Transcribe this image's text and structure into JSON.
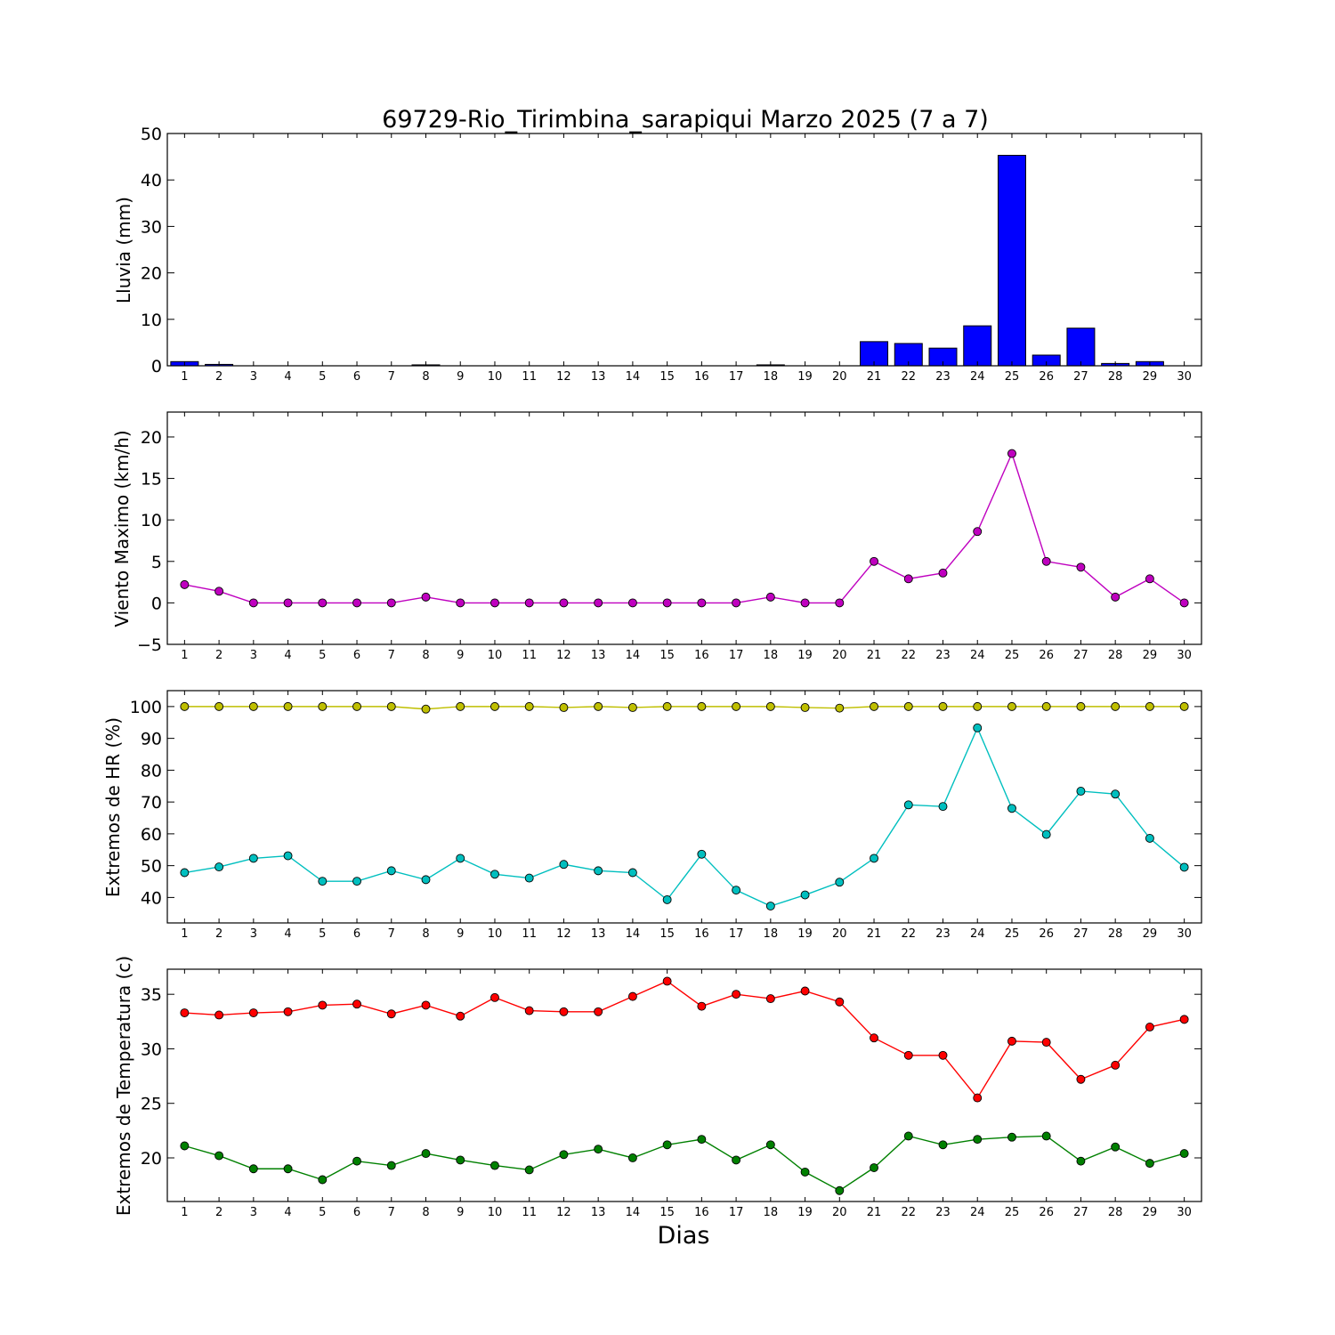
{
  "title": "69729-Rio_Tirimbina_sarapiqui Marzo 2025  (7 a 7)",
  "xlabel": "Dias",
  "colors": {
    "lluvia": "#0000ff",
    "viento": "#bf00bf",
    "hr_max": "#bfbf00",
    "hr_min": "#00bfbf",
    "temp_max": "#ff0000",
    "temp_min": "#008000"
  },
  "chart_data": [
    {
      "type": "bar",
      "title": "69729-Rio_Tirimbina_sarapiqui Marzo 2025  (7 a 7)",
      "xlabel": "",
      "ylabel": "Lluvia (mm)",
      "categories": [
        "1",
        "2",
        "3",
        "4",
        "5",
        "6",
        "7",
        "8",
        "9",
        "10",
        "11",
        "12",
        "13",
        "14",
        "15",
        "16",
        "17",
        "18",
        "19",
        "20",
        "21",
        "22",
        "23",
        "24",
        "25",
        "26",
        "27",
        "28",
        "29",
        "30"
      ],
      "ylim": [
        0,
        50
      ],
      "yticks": [
        "0",
        "10",
        "20",
        "30",
        "40",
        "50"
      ],
      "grid": false,
      "series": [
        {
          "values": [
            0.9,
            0.3,
            0,
            0,
            0,
            0,
            0,
            0.2,
            0,
            0,
            0,
            0,
            0,
            0,
            0,
            0,
            0,
            0.2,
            0,
            0,
            5.2,
            4.8,
            3.8,
            8.6,
            45.3,
            2.3,
            8.1,
            0.5,
            0.9,
            0
          ]
        }
      ]
    },
    {
      "type": "line",
      "xlabel": "",
      "ylabel": "Viento Maximo (km/h)",
      "categories": [
        "1",
        "2",
        "3",
        "4",
        "5",
        "6",
        "7",
        "8",
        "9",
        "10",
        "11",
        "12",
        "13",
        "14",
        "15",
        "16",
        "17",
        "18",
        "19",
        "20",
        "21",
        "22",
        "23",
        "24",
        "25",
        "26",
        "27",
        "28",
        "29",
        "30"
      ],
      "ylim": [
        -5,
        23
      ],
      "yticks": [
        "−5",
        "0",
        "5",
        "10",
        "15",
        "20"
      ],
      "grid": false,
      "series": [
        {
          "values": [
            2.2,
            1.4,
            0,
            0,
            0,
            0,
            0,
            0.7,
            0,
            0,
            0,
            0,
            0,
            0,
            0,
            0,
            0,
            0.7,
            0,
            0,
            5.0,
            2.9,
            3.6,
            8.6,
            18.0,
            5.0,
            4.3,
            0.7,
            2.9,
            0
          ]
        }
      ]
    },
    {
      "type": "line",
      "xlabel": "",
      "ylabel": "Extremos de HR (%)",
      "categories": [
        "1",
        "2",
        "3",
        "4",
        "5",
        "6",
        "7",
        "8",
        "9",
        "10",
        "11",
        "12",
        "13",
        "14",
        "15",
        "16",
        "17",
        "18",
        "19",
        "20",
        "21",
        "22",
        "23",
        "24",
        "25",
        "26",
        "27",
        "28",
        "29",
        "30"
      ],
      "ylim": [
        32,
        105
      ],
      "yticks": [
        "40",
        "50",
        "60",
        "70",
        "80",
        "90",
        "100"
      ],
      "grid": false,
      "series": [
        {
          "values": [
            100,
            100,
            100,
            100,
            100,
            100,
            100,
            99.2,
            100,
            100,
            100,
            99.7,
            100,
            99.7,
            100,
            100,
            100,
            100,
            99.7,
            99.5,
            100,
            100,
            100,
            100,
            100,
            100,
            100,
            100,
            100,
            100
          ]
        },
        {
          "values": [
            47.8,
            49.6,
            52.3,
            53.1,
            45.1,
            45.1,
            48.4,
            45.6,
            52.3,
            47.3,
            46.1,
            50.4,
            48.4,
            47.8,
            39.3,
            53.6,
            42.3,
            37.3,
            40.8,
            44.8,
            52.3,
            69.1,
            68.6,
            93.3,
            68.0,
            59.8,
            73.4,
            72.5,
            58.6,
            49.5
          ]
        }
      ]
    },
    {
      "type": "line",
      "xlabel": "Dias",
      "ylabel": "Extremos de Temperatura (c)",
      "categories": [
        "1",
        "2",
        "3",
        "4",
        "5",
        "6",
        "7",
        "8",
        "9",
        "10",
        "11",
        "12",
        "13",
        "14",
        "15",
        "16",
        "17",
        "18",
        "19",
        "20",
        "21",
        "22",
        "23",
        "24",
        "25",
        "26",
        "27",
        "28",
        "29",
        "30"
      ],
      "ylim": [
        16,
        37.3
      ],
      "yticks": [
        "20",
        "25",
        "30",
        "35"
      ],
      "grid": false,
      "series": [
        {
          "values": [
            33.3,
            33.1,
            33.3,
            33.4,
            34.0,
            34.1,
            33.2,
            34.0,
            33.0,
            34.7,
            33.5,
            33.4,
            33.4,
            34.8,
            36.2,
            33.9,
            35.0,
            34.6,
            35.3,
            34.3,
            31.0,
            29.4,
            29.4,
            25.5,
            30.7,
            30.6,
            27.2,
            28.5,
            32.0,
            32.7
          ]
        },
        {
          "values": [
            21.1,
            20.2,
            19.0,
            19.0,
            18.0,
            19.7,
            19.3,
            20.4,
            19.8,
            19.3,
            18.9,
            20.3,
            20.8,
            20.0,
            21.2,
            21.7,
            19.8,
            21.2,
            18.7,
            17.0,
            19.1,
            22.0,
            21.2,
            21.7,
            21.9,
            22.0,
            19.7,
            21.0,
            19.5,
            20.4
          ]
        }
      ]
    }
  ]
}
